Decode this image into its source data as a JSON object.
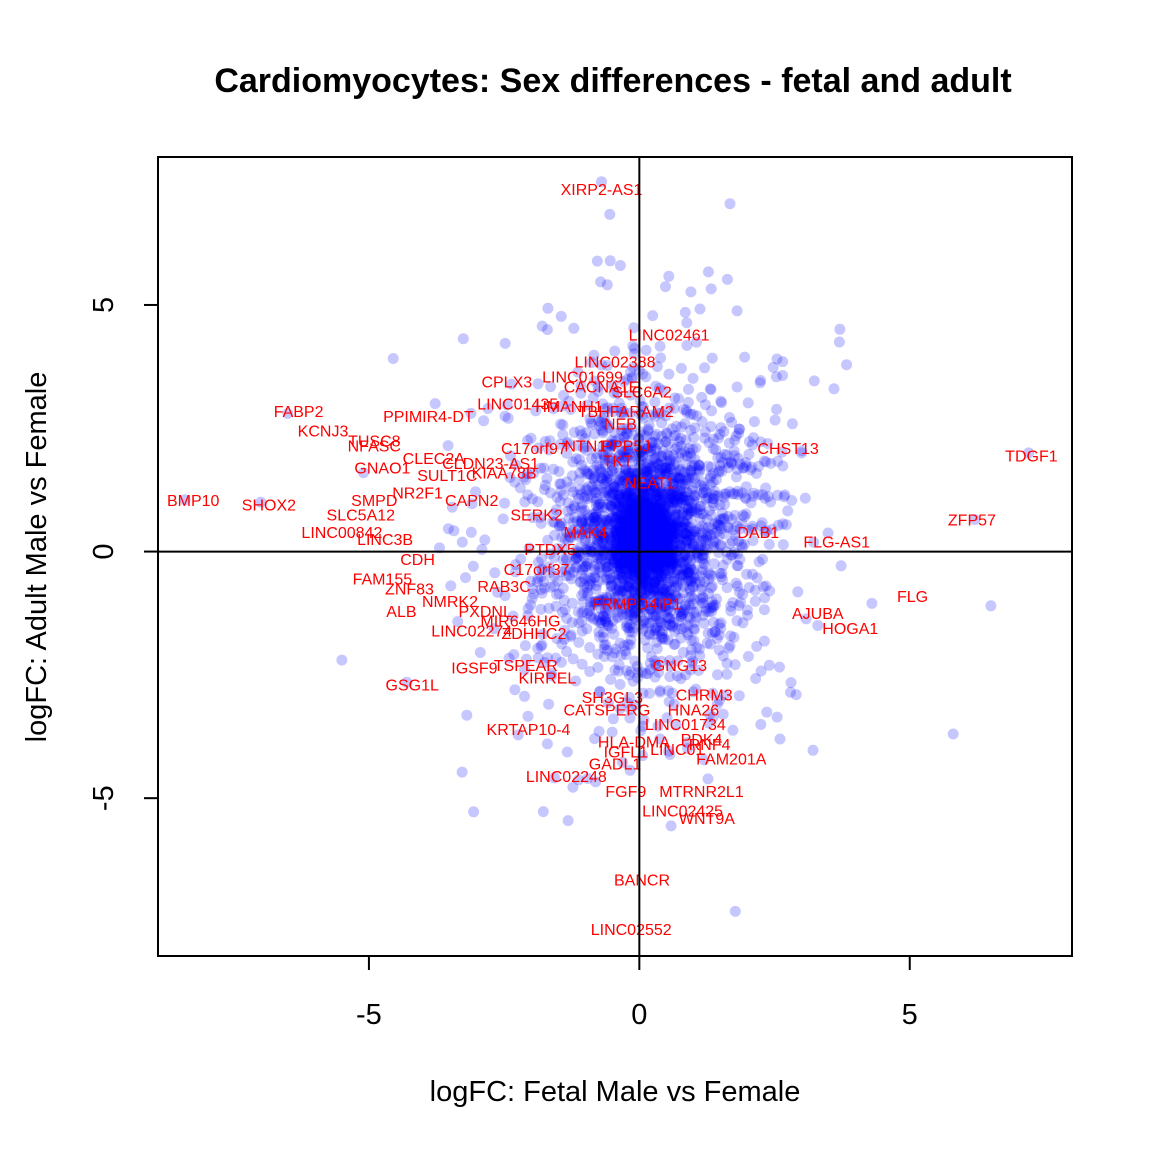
{
  "chart_data": {
    "type": "scatter",
    "title": "Cardiomyocytes: Sex differences - fetal and adult",
    "xlabel": "logFC: Fetal Male vs Female",
    "ylabel": "logFC: Adult Male vs Female",
    "xlim": [
      -8.9,
      8.0
    ],
    "ylim": [
      -8.2,
      8.0
    ],
    "xticks": [
      -5,
      0,
      5
    ],
    "yticks": [
      -5,
      0,
      5
    ],
    "reference_lines": {
      "x": 0,
      "y": 0
    },
    "grid": false,
    "legend": "none",
    "colors": {
      "points": "#0000ff",
      "labels": "#ff0000",
      "axes": "#000000"
    },
    "cloud": {
      "center": [
        0.1,
        0.3
      ],
      "sd": [
        0.7,
        1.1
      ],
      "n": 3500,
      "seed": 7
    },
    "points": [
      {
        "x": -0.7,
        "y": 7.5
      },
      {
        "x": -0.35,
        "y": 5.8
      },
      {
        "x": 0.85,
        "y": 4.85
      },
      {
        "x": 3.7,
        "y": 4.25
      },
      {
        "x": -1.7,
        "y": 4.5
      },
      {
        "x": 7.2,
        "y": 2.0
      },
      {
        "x": 6.5,
        "y": -1.1
      },
      {
        "x": 6.2,
        "y": 0.65
      },
      {
        "x": 4.3,
        "y": -1.05
      },
      {
        "x": 3.6,
        "y": 3.3
      },
      {
        "x": -7.0,
        "y": 1.0
      },
      {
        "x": -8.4,
        "y": 1.05
      },
      {
        "x": -6.5,
        "y": 2.8
      },
      {
        "x": -4.3,
        "y": -2.65
      },
      {
        "x": -2.8,
        "y": 2.9
      },
      {
        "x": -2.3,
        "y": -2.8
      },
      {
        "x": 3.3,
        "y": -1.5
      },
      {
        "x": 2.9,
        "y": -2.9
      },
      {
        "x": 2.6,
        "y": -3.8
      },
      {
        "x": -1.7,
        "y": -3.9
      },
      {
        "x": 1.3,
        "y": -3.3
      },
      {
        "x": 3.0,
        "y": 2.0
      },
      {
        "x": -5.5,
        "y": -2.2
      },
      {
        "x": -5.1,
        "y": 1.6
      }
    ],
    "labels": [
      {
        "text": "XIRP2-AS1",
        "x": -0.7,
        "y": 7.35
      },
      {
        "text": "LINC02461",
        "x": 0.55,
        "y": 4.4
      },
      {
        "text": "LINC02388",
        "x": -0.45,
        "y": 3.85
      },
      {
        "text": "LINC01699",
        "x": -1.05,
        "y": 3.55
      },
      {
        "text": "CPLX3",
        "x": -2.45,
        "y": 3.45
      },
      {
        "text": "CACNA1E",
        "x": -0.7,
        "y": 3.35
      },
      {
        "text": "SLC6A2",
        "x": 0.05,
        "y": 3.25
      },
      {
        "text": "LINC01435",
        "x": -2.25,
        "y": 3.0
      },
      {
        "text": "HMANH1",
        "x": -1.3,
        "y": 2.95
      },
      {
        "text": "TBHFARAM2",
        "x": -0.25,
        "y": 2.85
      },
      {
        "text": "NEB",
        "x": -0.35,
        "y": 2.6
      },
      {
        "text": "FABP2",
        "x": -6.3,
        "y": 2.85
      },
      {
        "text": "PPIMIR4-DT",
        "x": -3.9,
        "y": 2.75
      },
      {
        "text": "KCNJ3",
        "x": -5.85,
        "y": 2.45
      },
      {
        "text": "TUSC8",
        "x": -4.9,
        "y": 2.25
      },
      {
        "text": "NFASC",
        "x": -4.9,
        "y": 2.15
      },
      {
        "text": "C17orf97",
        "x": -1.95,
        "y": 2.1
      },
      {
        "text": "NTN1",
        "x": -1.0,
        "y": 2.15
      },
      {
        "text": "PPP5J",
        "x": -0.25,
        "y": 2.15
      },
      {
        "text": "TKT",
        "x": -0.4,
        "y": 1.85
      },
      {
        "text": "CLEC2A",
        "x": -3.8,
        "y": 1.9
      },
      {
        "text": "CLDN23-AS1",
        "x": -2.75,
        "y": 1.8
      },
      {
        "text": "GNAO1",
        "x": -4.75,
        "y": 1.7
      },
      {
        "text": "SULT1C",
        "x": -3.55,
        "y": 1.55
      },
      {
        "text": "KIAA78B",
        "x": -2.5,
        "y": 1.6
      },
      {
        "text": "CHST13",
        "x": 2.75,
        "y": 2.1
      },
      {
        "text": "TDGF1",
        "x": 7.25,
        "y": 1.95
      },
      {
        "text": "NEAT1",
        "x": 0.2,
        "y": 1.4
      },
      {
        "text": "BMP10",
        "x": -8.25,
        "y": 1.05
      },
      {
        "text": "SHOX2",
        "x": -6.85,
        "y": 0.95
      },
      {
        "text": "SMPD",
        "x": -4.9,
        "y": 1.05
      },
      {
        "text": "NR2F1",
        "x": -4.1,
        "y": 1.2
      },
      {
        "text": "CAPN2",
        "x": -3.1,
        "y": 1.05
      },
      {
        "text": "SLC5A12",
        "x": -5.15,
        "y": 0.75
      },
      {
        "text": "SERK2",
        "x": -1.9,
        "y": 0.75
      },
      {
        "text": "LINC00842",
        "x": -5.5,
        "y": 0.4
      },
      {
        "text": "LINC3B",
        "x": -4.7,
        "y": 0.25
      },
      {
        "text": "MAK4",
        "x": -1.0,
        "y": 0.4
      },
      {
        "text": "DAB1",
        "x": 2.2,
        "y": 0.4
      },
      {
        "text": "ZFP57",
        "x": 6.15,
        "y": 0.65
      },
      {
        "text": "FLG-AS1",
        "x": 3.65,
        "y": 0.2
      },
      {
        "text": "PTDX5",
        "x": -1.65,
        "y": 0.05
      },
      {
        "text": "CDH",
        "x": -4.1,
        "y": -0.15
      },
      {
        "text": "C17orf37",
        "x": -1.9,
        "y": -0.35
      },
      {
        "text": "FAM155",
        "x": -4.75,
        "y": -0.55
      },
      {
        "text": "ZNF83",
        "x": -4.25,
        "y": -0.75
      },
      {
        "text": "RAB3C",
        "x": -2.5,
        "y": -0.7
      },
      {
        "text": "NMRK2",
        "x": -3.5,
        "y": -1.0
      },
      {
        "text": "ALB",
        "x": -4.4,
        "y": -1.2
      },
      {
        "text": "PXDNL",
        "x": -2.85,
        "y": -1.2
      },
      {
        "text": "FRMPD4IP1",
        "x": -0.05,
        "y": -1.05
      },
      {
        "text": "MIR646HG",
        "x": -2.2,
        "y": -1.4
      },
      {
        "text": "FLG",
        "x": 5.05,
        "y": -0.9
      },
      {
        "text": "AJUBA",
        "x": 3.3,
        "y": -1.25
      },
      {
        "text": "HOGA1",
        "x": 3.9,
        "y": -1.55
      },
      {
        "text": "LINC02274",
        "x": -3.1,
        "y": -1.6
      },
      {
        "text": "ZDHHC2",
        "x": -1.95,
        "y": -1.65
      },
      {
        "text": "IGSF9",
        "x": -3.05,
        "y": -2.35
      },
      {
        "text": "TSPEAR",
        "x": -2.1,
        "y": -2.3
      },
      {
        "text": "KIRREL",
        "x": -1.7,
        "y": -2.55
      },
      {
        "text": "GNG13",
        "x": 0.75,
        "y": -2.3
      },
      {
        "text": "GSG1L",
        "x": -4.2,
        "y": -2.7
      },
      {
        "text": "SH3GL3",
        "x": -0.5,
        "y": -2.95
      },
      {
        "text": "CHRM3",
        "x": 1.2,
        "y": -2.9
      },
      {
        "text": "CATSPERG",
        "x": -0.6,
        "y": -3.2
      },
      {
        "text": "HNA26",
        "x": 1.0,
        "y": -3.2
      },
      {
        "text": "LINC01734",
        "x": 0.85,
        "y": -3.5
      },
      {
        "text": "KRTAP10-4",
        "x": -2.05,
        "y": -3.6
      },
      {
        "text": "PDK4",
        "x": 1.15,
        "y": -3.8
      },
      {
        "text": "HLA-DMA",
        "x": -0.1,
        "y": -3.85
      },
      {
        "text": "RNF4",
        "x": 1.3,
        "y": -3.9
      },
      {
        "text": "LINC01",
        "x": 0.7,
        "y": -4.0
      },
      {
        "text": "IGFL1",
        "x": -0.25,
        "y": -4.05
      },
      {
        "text": "GADL1",
        "x": -0.45,
        "y": -4.3
      },
      {
        "text": "FAM201A",
        "x": 1.7,
        "y": -4.2
      },
      {
        "text": "LINC02248",
        "x": -1.35,
        "y": -4.55
      },
      {
        "text": "FGF9",
        "x": -0.25,
        "y": -4.85
      },
      {
        "text": "MTRNR2L1",
        "x": 1.15,
        "y": -4.85
      },
      {
        "text": "LINC02425",
        "x": 0.8,
        "y": -5.25
      },
      {
        "text": "WNT9A",
        "x": 1.25,
        "y": -5.4
      },
      {
        "text": "BANCR",
        "x": 0.05,
        "y": -6.65
      },
      {
        "text": "LINC02552",
        "x": -0.15,
        "y": -7.65
      }
    ],
    "dense_labels": {
      "text": "",
      "region": "left-center",
      "count": 0
    }
  }
}
